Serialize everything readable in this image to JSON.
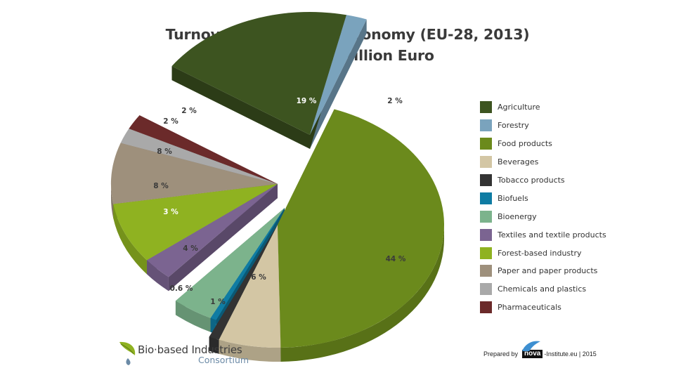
{
  "chart_data": {
    "type": "pie",
    "title": "Turnover in the EU bioeconomy (EU-28, 2013)",
    "subtitle": "Total: 2.1 trillion Euro",
    "unit": "%",
    "style": "3d exploded pie",
    "legend_position": "right",
    "categories": [
      "Agriculture",
      "Forestry",
      "Food products",
      "Beverages",
      "Tobacco products",
      "Biofuels",
      "Bioenergy",
      "Textiles and textile products",
      "Forest-based industry",
      "Paper and paper products",
      "Chemicals and plastics",
      "Pharmaceuticals"
    ],
    "values": [
      19,
      2,
      44,
      6,
      1,
      0.6,
      4,
      3,
      8,
      8,
      2,
      2
    ],
    "labels": [
      "19 %",
      "2 %",
      "44 %",
      "6 %",
      "1 %",
      "0.6 %",
      "4 %",
      "3 %",
      "8 %",
      "8 %",
      "2 %",
      "2 %"
    ],
    "colors": [
      "#3d5420",
      "#7aa3bd",
      "#6b8a1c",
      "#d3c6a4",
      "#333333",
      "#0f7ca3",
      "#7cb38c",
      "#7b6491",
      "#8fb221",
      "#9e907c",
      "#a9a9a9",
      "#6b2a2a"
    ]
  },
  "header": {
    "title": "Turnover in the EU bioeconomy (EU-28, 2013)",
    "subtitle": "Total: 2.1 trillion Euro"
  },
  "legend": {
    "items": [
      {
        "label": "Agriculture",
        "color": "#3d5420"
      },
      {
        "label": "Forestry",
        "color": "#7aa3bd"
      },
      {
        "label": "Food products",
        "color": "#6b8a1c"
      },
      {
        "label": "Beverages",
        "color": "#d3c6a4"
      },
      {
        "label": "Tobacco products",
        "color": "#333333"
      },
      {
        "label": "Biofuels",
        "color": "#0f7ca3"
      },
      {
        "label": "Bioenergy",
        "color": "#7cb38c"
      },
      {
        "label": "Textiles and textile products",
        "color": "#7b6491"
      },
      {
        "label": "Forest-based industry",
        "color": "#8fb221"
      },
      {
        "label": "Paper and paper products",
        "color": "#9e907c"
      },
      {
        "label": "Chemicals and plastics",
        "color": "#a9a9a9"
      },
      {
        "label": "Pharmaceuticals",
        "color": "#6b2a2a"
      }
    ]
  },
  "footer": {
    "logo_line1": "Bio·based Industries",
    "logo_line2": "Consortium",
    "prepared_by": "Prepared by",
    "nova": "nova",
    "institute": "-Institute.eu | 2015"
  }
}
